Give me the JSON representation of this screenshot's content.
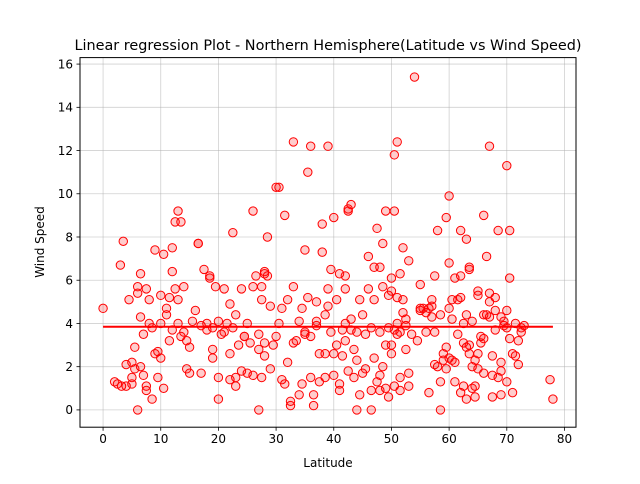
{
  "chart_data": {
    "type": "scatter",
    "title": "Linear regression Plot - Northern Hemisphere(Latitude vs Wind Speed)",
    "xlabel": "Latitude",
    "ylabel": "Wind Speed",
    "xlim": [
      -4,
      82
    ],
    "ylim": [
      -0.8,
      16.3
    ],
    "x_ticks": [
      0,
      10,
      20,
      30,
      40,
      50,
      60,
      70,
      80
    ],
    "y_ticks": [
      0,
      2,
      4,
      6,
      8,
      10,
      12,
      14,
      16
    ],
    "grid": true,
    "colors": {
      "points_edge": "#ff0000",
      "points_fill": "#ff000033",
      "line": "#ff0000"
    },
    "regression": {
      "x": [
        0,
        78
      ],
      "y": [
        3.85,
        3.85
      ]
    },
    "points": [
      [
        0,
        4.7
      ],
      [
        2,
        1.3
      ],
      [
        2.5,
        1.2
      ],
      [
        3,
        6.7
      ],
      [
        3.2,
        1.1
      ],
      [
        3.5,
        7.8
      ],
      [
        4,
        2.1
      ],
      [
        4,
        1.1
      ],
      [
        4.5,
        5.1
      ],
      [
        5,
        2.2
      ],
      [
        5,
        1.5
      ],
      [
        5,
        1.2
      ],
      [
        5.5,
        2.9
      ],
      [
        5.5,
        1.9
      ],
      [
        6,
        0
      ],
      [
        6,
        5.7
      ],
      [
        6,
        5.4
      ],
      [
        6.5,
        4.3
      ],
      [
        6.5,
        6.3
      ],
      [
        6.5,
        2.0
      ],
      [
        7,
        1.6
      ],
      [
        7,
        3.5
      ],
      [
        7.5,
        1.1
      ],
      [
        7.5,
        0.9
      ],
      [
        7.5,
        5.6
      ],
      [
        8,
        4.0
      ],
      [
        8,
        5.1
      ],
      [
        8.5,
        0.5
      ],
      [
        8.5,
        3.8
      ],
      [
        9,
        7.4
      ],
      [
        9,
        2.6
      ],
      [
        9.5,
        2.7
      ],
      [
        9.5,
        1.5
      ],
      [
        10,
        4.0
      ],
      [
        10,
        5.3
      ],
      [
        10,
        2.4
      ],
      [
        10.5,
        7.2
      ],
      [
        10.5,
        1.0
      ],
      [
        11,
        4.4
      ],
      [
        11,
        4.7
      ],
      [
        11.5,
        5.2
      ],
      [
        11.5,
        3.2
      ],
      [
        12,
        7.5
      ],
      [
        12,
        6.4
      ],
      [
        12,
        3.7
      ],
      [
        12.5,
        8.7
      ],
      [
        12.5,
        5.6
      ],
      [
        13,
        9.2
      ],
      [
        13,
        5.1
      ],
      [
        13,
        4.0
      ],
      [
        13.5,
        8.7
      ],
      [
        13.5,
        3.4
      ],
      [
        14,
        5.7
      ],
      [
        14,
        3.6
      ],
      [
        14.5,
        3.2
      ],
      [
        14.5,
        1.9
      ],
      [
        15,
        2.9
      ],
      [
        15,
        1.7
      ],
      [
        15.5,
        4.1
      ],
      [
        16,
        4.6
      ],
      [
        16.5,
        7.7
      ],
      [
        16.5,
        7.7
      ],
      [
        17,
        1.7
      ],
      [
        17,
        3.9
      ],
      [
        17.5,
        6.5
      ],
      [
        18,
        3.7
      ],
      [
        18,
        4.0
      ],
      [
        18.5,
        6.1
      ],
      [
        18.5,
        6.2
      ],
      [
        19,
        3.8
      ],
      [
        19,
        2.4
      ],
      [
        19,
        2.8
      ],
      [
        19.5,
        5.7
      ],
      [
        20,
        4.1
      ],
      [
        20,
        1.5
      ],
      [
        20,
        0.5
      ],
      [
        20.5,
        3.5
      ],
      [
        21,
        5.6
      ],
      [
        21,
        3.6
      ],
      [
        21.5,
        4.0
      ],
      [
        22,
        2.6
      ],
      [
        22,
        4.9
      ],
      [
        22,
        1.4
      ],
      [
        22.5,
        8.2
      ],
      [
        22.5,
        3.8
      ],
      [
        23,
        4.4
      ],
      [
        23,
        1.5
      ],
      [
        23,
        1.1
      ],
      [
        23.5,
        3.0
      ],
      [
        24,
        1.8
      ],
      [
        24,
        5.6
      ],
      [
        24.5,
        3.4
      ],
      [
        24.5,
        3.4
      ],
      [
        25,
        1.7
      ],
      [
        25,
        4.0
      ],
      [
        25.5,
        3.1
      ],
      [
        26,
        9.2
      ],
      [
        26,
        5.7
      ],
      [
        26,
        1.6
      ],
      [
        26.5,
        6.2
      ],
      [
        27,
        0
      ],
      [
        27,
        3.5
      ],
      [
        27,
        2.8
      ],
      [
        27.5,
        5.1
      ],
      [
        27.5,
        5.7
      ],
      [
        27.5,
        1.5
      ],
      [
        28,
        6.4
      ],
      [
        28,
        2.5
      ],
      [
        28,
        3.1
      ],
      [
        28,
        6.3
      ],
      [
        28.5,
        8.0
      ],
      [
        28.5,
        6.2
      ],
      [
        29,
        4.8
      ],
      [
        29,
        1.9
      ],
      [
        29.5,
        3.0
      ],
      [
        30,
        3.4
      ],
      [
        30,
        10.3
      ],
      [
        30.5,
        10.3
      ],
      [
        30.5,
        4.0
      ],
      [
        31,
        4.7
      ],
      [
        31,
        1.4
      ],
      [
        31.5,
        9.0
      ],
      [
        31.5,
        1.2
      ],
      [
        32,
        2.2
      ],
      [
        32,
        5.1
      ],
      [
        32.5,
        0.4
      ],
      [
        32.5,
        0.2
      ],
      [
        33,
        3.1
      ],
      [
        33,
        12.4
      ],
      [
        33,
        5.7
      ],
      [
        33.5,
        3.2
      ],
      [
        34,
        4.1
      ],
      [
        34,
        0.7
      ],
      [
        34.5,
        4.7
      ],
      [
        34.5,
        1.2
      ],
      [
        35,
        7.4
      ],
      [
        35,
        3.6
      ],
      [
        35,
        3.5
      ],
      [
        35.5,
        5.2
      ],
      [
        35.5,
        11.0
      ],
      [
        36,
        12.2
      ],
      [
        36,
        3.4
      ],
      [
        36,
        1.5
      ],
      [
        36.5,
        0.2
      ],
      [
        36.5,
        0.7
      ],
      [
        37,
        4.1
      ],
      [
        37,
        3.9
      ],
      [
        37,
        5.0
      ],
      [
        37.5,
        2.6
      ],
      [
        37.5,
        1.3
      ],
      [
        38,
        7.3
      ],
      [
        38,
        8.6
      ],
      [
        38.5,
        4.4
      ],
      [
        38.5,
        2.6
      ],
      [
        38.5,
        1.5
      ],
      [
        39,
        4.8
      ],
      [
        39,
        12.2
      ],
      [
        39,
        5.6
      ],
      [
        39.5,
        6.5
      ],
      [
        39.5,
        3.6
      ],
      [
        40,
        2.6
      ],
      [
        40,
        1.6
      ],
      [
        40,
        8.9
      ],
      [
        40.5,
        3.0
      ],
      [
        40.5,
        5.1
      ],
      [
        41,
        0.9
      ],
      [
        41,
        6.3
      ],
      [
        41,
        1.2
      ],
      [
        41.5,
        3.7
      ],
      [
        41.5,
        2.5
      ],
      [
        42,
        4.0
      ],
      [
        42,
        3.2
      ],
      [
        42,
        5.6
      ],
      [
        42,
        6.2
      ],
      [
        42.5,
        9.2
      ],
      [
        42.5,
        9.3
      ],
      [
        42.5,
        1.8
      ],
      [
        43,
        4.2
      ],
      [
        43,
        3.7
      ],
      [
        43,
        9.5
      ],
      [
        43.5,
        2.8
      ],
      [
        43.5,
        1.5
      ],
      [
        44,
        2.3
      ],
      [
        44,
        3.6
      ],
      [
        44,
        0
      ],
      [
        44.5,
        5.1
      ],
      [
        44.5,
        0.7
      ],
      [
        45,
        4.4
      ],
      [
        45,
        1.7
      ],
      [
        45.5,
        3.5
      ],
      [
        45.5,
        1.9
      ],
      [
        46,
        7.1
      ],
      [
        46,
        5.6
      ],
      [
        46.5,
        3.8
      ],
      [
        46.5,
        0.9
      ],
      [
        46.5,
        0
      ],
      [
        47,
        2.4
      ],
      [
        47,
        6.6
      ],
      [
        47,
        5.1
      ],
      [
        47.5,
        8.4
      ],
      [
        47.5,
        1.3
      ],
      [
        48,
        0.9
      ],
      [
        48,
        6.6
      ],
      [
        48,
        3.6
      ],
      [
        48,
        1.6
      ],
      [
        48.5,
        7.7
      ],
      [
        48.5,
        5.7
      ],
      [
        48.5,
        2.0
      ],
      [
        49,
        9.2
      ],
      [
        49,
        3.0
      ],
      [
        49,
        1.0
      ],
      [
        49.5,
        3.8
      ],
      [
        49.5,
        5.3
      ],
      [
        49.5,
        0.6
      ],
      [
        50,
        6.1
      ],
      [
        50,
        2.6
      ],
      [
        50,
        5.5
      ],
      [
        50,
        3.0
      ],
      [
        50.5,
        1.1
      ],
      [
        50.5,
        11.8
      ],
      [
        50.5,
        9.2
      ],
      [
        50.5,
        3.7
      ],
      [
        51,
        5.2
      ],
      [
        51,
        4.0
      ],
      [
        51,
        12.4
      ],
      [
        51,
        3.5
      ],
      [
        51.5,
        3.6
      ],
      [
        51.5,
        6.3
      ],
      [
        51.5,
        1.5
      ],
      [
        51.5,
        0.9
      ],
      [
        52,
        7.5
      ],
      [
        52,
        5.1
      ],
      [
        52,
        4.5
      ],
      [
        52.5,
        4.2
      ],
      [
        52.5,
        3.9
      ],
      [
        52.5,
        2.8
      ],
      [
        53,
        1.1
      ],
      [
        53,
        1.7
      ],
      [
        53,
        6.9
      ],
      [
        53.5,
        3.5
      ],
      [
        54,
        15.4
      ],
      [
        54.5,
        3.2
      ],
      [
        55,
        4.7
      ],
      [
        55,
        4.6
      ],
      [
        55,
        5.8
      ],
      [
        55.5,
        4.7
      ],
      [
        56,
        4.5
      ],
      [
        56,
        3.6
      ],
      [
        56.5,
        4.7
      ],
      [
        56.5,
        0.8
      ],
      [
        57,
        4.8
      ],
      [
        57,
        5.1
      ],
      [
        57,
        4.3
      ],
      [
        57.5,
        6.2
      ],
      [
        57.5,
        2.1
      ],
      [
        57.5,
        3.6
      ],
      [
        58,
        2.0
      ],
      [
        58,
        8.3
      ],
      [
        58.5,
        4.4
      ],
      [
        58.5,
        1.3
      ],
      [
        58.5,
        0
      ],
      [
        59,
        2.6
      ],
      [
        59,
        2.3
      ],
      [
        59.5,
        8.9
      ],
      [
        59.5,
        1.9
      ],
      [
        59.5,
        2.9
      ],
      [
        60,
        6.8
      ],
      [
        60,
        2.4
      ],
      [
        60,
        4.7
      ],
      [
        60,
        9.9
      ],
      [
        60.5,
        4.2
      ],
      [
        60.5,
        5.1
      ],
      [
        60.5,
        2.3
      ],
      [
        61,
        1.3
      ],
      [
        61,
        6.1
      ],
      [
        61,
        2.2
      ],
      [
        61.5,
        3.5
      ],
      [
        61.5,
        5.1
      ],
      [
        62,
        8.3
      ],
      [
        62,
        6.2
      ],
      [
        62,
        5.2
      ],
      [
        62,
        0.8
      ],
      [
        62.5,
        1.1
      ],
      [
        62.5,
        4.0
      ],
      [
        62.5,
        3.1
      ],
      [
        63,
        2.9
      ],
      [
        63,
        4.4
      ],
      [
        63,
        7.9
      ],
      [
        63,
        0.5
      ],
      [
        63.5,
        6.6
      ],
      [
        63.5,
        6.5
      ],
      [
        63.5,
        3.0
      ],
      [
        63.5,
        2.6
      ],
      [
        64,
        1.0
      ],
      [
        64,
        2.0
      ],
      [
        64,
        4.1
      ],
      [
        64.5,
        2.3
      ],
      [
        64.5,
        1.1
      ],
      [
        64.5,
        0.6
      ],
      [
        65,
        5.5
      ],
      [
        65,
        5.3
      ],
      [
        65,
        1.9
      ],
      [
        65,
        2.6
      ],
      [
        65.5,
        3.1
      ],
      [
        65.5,
        3.4
      ],
      [
        66,
        9.0
      ],
      [
        66,
        4.4
      ],
      [
        66,
        1.7
      ],
      [
        66,
        3.3
      ],
      [
        66.5,
        4.4
      ],
      [
        66.5,
        7.1
      ],
      [
        67,
        5.4
      ],
      [
        67,
        5.0
      ],
      [
        67,
        4.3
      ],
      [
        67,
        12.2
      ],
      [
        67.5,
        2.5
      ],
      [
        67.5,
        1.6
      ],
      [
        67.5,
        0.6
      ],
      [
        68,
        4.6
      ],
      [
        68,
        3.7
      ],
      [
        68,
        5.2
      ],
      [
        68.5,
        8.3
      ],
      [
        68.5,
        1.5
      ],
      [
        69,
        1.8
      ],
      [
        69,
        2.2
      ],
      [
        69,
        4.3
      ],
      [
        69,
        0.7
      ],
      [
        69.5,
        4.1
      ],
      [
        69.5,
        3.9
      ],
      [
        70,
        11.3
      ],
      [
        70,
        4.6
      ],
      [
        70,
        3.8
      ],
      [
        70,
        1.3
      ],
      [
        70.5,
        8.3
      ],
      [
        70.5,
        3.3
      ],
      [
        70.5,
        6.1
      ],
      [
        71,
        0.8
      ],
      [
        71,
        2.6
      ],
      [
        71.5,
        2.5
      ],
      [
        71.5,
        4.0
      ],
      [
        72,
        2.1
      ],
      [
        72,
        3.2
      ],
      [
        72.5,
        3.6
      ],
      [
        72.5,
        3.8
      ],
      [
        73,
        3.9
      ],
      [
        77.5,
        1.4
      ],
      [
        78,
        0.5
      ]
    ]
  }
}
